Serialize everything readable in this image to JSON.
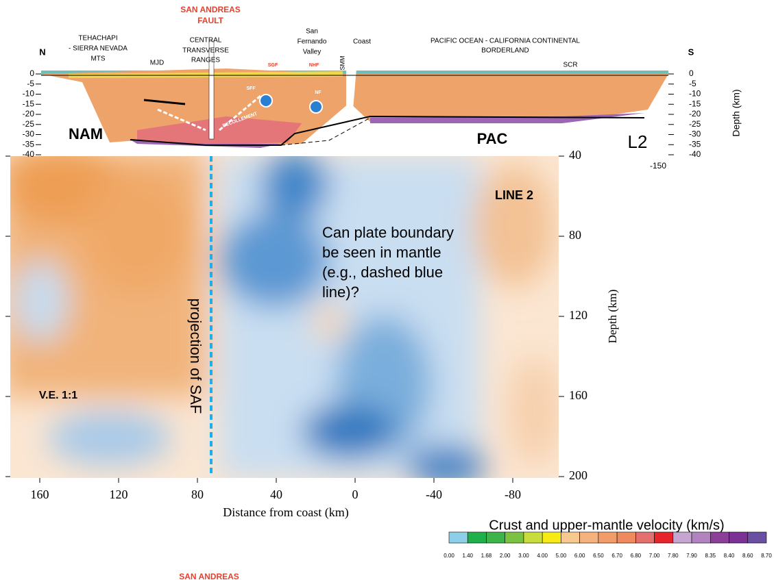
{
  "cross_section": {
    "north": "N",
    "south": "S",
    "fault_title": [
      "SAN ANDREAS",
      "FAULT"
    ],
    "tehachapi": [
      "TEHACHAPI",
      "- SIERRA  NEVADA",
      "MTS"
    ],
    "mjd": "MJD",
    "transverse": [
      "CENTRAL",
      "TRANSVERSE",
      "RANGES"
    ],
    "san_fernando": [
      "San",
      "Fernando",
      "Valley"
    ],
    "smm": "SMM",
    "coast": "Coast",
    "pacific": [
      "PACIFIC  OCEAN - CALIFORNIA  CONTINENTAL",
      "BORDERLAND"
    ],
    "scr": "SCR",
    "sgf": "SGF",
    "nhf": "NHF",
    "sff": "SFF",
    "nf": "NF",
    "decollement": "DECOLLEMENT",
    "nam": "NAM",
    "pac": "PAC",
    "l2": "L2",
    "depth_ticks": [
      "0",
      "-5",
      "-10",
      "-15",
      "-20",
      "-25",
      "-30",
      "-35",
      "-40"
    ],
    "depth_label": "Depth (km)",
    "extra_tick": "-150"
  },
  "tomography": {
    "line": "LINE 2",
    "question": [
      "Can plate boundary",
      "be seen in mantle",
      "(e.g., dashed blue",
      " line)?"
    ],
    "projection": "projection of SAF",
    "ve": "V.E. 1:1",
    "x_ticks": [
      "160",
      "120",
      "80",
      "40",
      "0",
      "-40",
      "-80"
    ],
    "x_label": "Distance from coast (km)",
    "y_ticks": [
      "40",
      "80",
      "120",
      "160",
      "200"
    ],
    "y_label": "Depth (km)"
  },
  "colorbar": {
    "title": "Crust and upper-mantle velocity (km/s)",
    "labels": [
      "0.00",
      "1.40",
      "1.68",
      "2.00",
      "3.00",
      "4.00",
      "5.00",
      "6.00",
      "6.50",
      "6.70",
      "6.80",
      "7.00",
      "7.80",
      "7.90",
      "8.35",
      "8.40",
      "8.60",
      "8.70"
    ]
  },
  "footer_cut": "SAN ANDREAS"
}
